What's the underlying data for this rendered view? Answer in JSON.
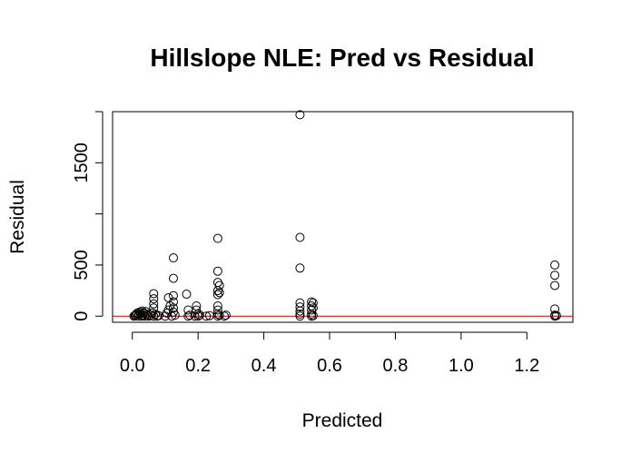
{
  "chart_data": {
    "type": "scatter",
    "title": "Hillslope NLE: Pred vs Residual",
    "xlabel": "Predicted",
    "ylabel": "Residual",
    "xlim": [
      -0.06,
      1.34
    ],
    "ylim": [
      -60,
      2000
    ],
    "xticks": [
      0.0,
      0.2,
      0.4,
      0.6,
      0.8,
      1.0,
      1.2
    ],
    "xtick_labels": [
      "0.0",
      "0.2",
      "0.4",
      "0.6",
      "0.8",
      "1.0",
      "1.2"
    ],
    "yticks": [
      0,
      500,
      1000,
      1500
    ],
    "ytick_labels": [
      "0",
      "500",
      "",
      "1500"
    ],
    "reference_line": {
      "y": 0,
      "color": "#cc0000"
    },
    "marker": "open-circle",
    "grid": false,
    "points": [
      [
        0.005,
        0
      ],
      [
        0.008,
        5
      ],
      [
        0.01,
        10
      ],
      [
        0.012,
        20
      ],
      [
        0.015,
        30
      ],
      [
        0.018,
        0
      ],
      [
        0.02,
        15
      ],
      [
        0.022,
        40
      ],
      [
        0.025,
        25
      ],
      [
        0.028,
        0
      ],
      [
        0.03,
        50
      ],
      [
        0.032,
        10
      ],
      [
        0.035,
        30
      ],
      [
        0.038,
        0
      ],
      [
        0.04,
        45
      ],
      [
        0.042,
        20
      ],
      [
        0.045,
        5
      ],
      [
        0.05,
        0
      ],
      [
        0.055,
        10
      ],
      [
        0.06,
        30
      ],
      [
        0.065,
        0
      ],
      [
        0.07,
        20
      ],
      [
        0.075,
        0
      ],
      [
        0.08,
        5
      ],
      [
        0.065,
        220
      ],
      [
        0.065,
        170
      ],
      [
        0.065,
        120
      ],
      [
        0.065,
        80
      ],
      [
        0.1,
        0
      ],
      [
        0.105,
        30
      ],
      [
        0.11,
        60
      ],
      [
        0.11,
        180
      ],
      [
        0.115,
        100
      ],
      [
        0.12,
        0
      ],
      [
        0.125,
        570
      ],
      [
        0.125,
        370
      ],
      [
        0.125,
        200
      ],
      [
        0.125,
        140
      ],
      [
        0.125,
        80
      ],
      [
        0.125,
        40
      ],
      [
        0.13,
        10
      ],
      [
        0.165,
        215
      ],
      [
        0.17,
        0
      ],
      [
        0.17,
        60
      ],
      [
        0.175,
        10
      ],
      [
        0.19,
        0
      ],
      [
        0.195,
        60
      ],
      [
        0.195,
        100
      ],
      [
        0.2,
        0
      ],
      [
        0.2,
        20
      ],
      [
        0.205,
        10
      ],
      [
        0.225,
        0
      ],
      [
        0.235,
        5
      ],
      [
        0.26,
        760
      ],
      [
        0.26,
        440
      ],
      [
        0.26,
        330
      ],
      [
        0.26,
        250
      ],
      [
        0.26,
        210
      ],
      [
        0.26,
        100
      ],
      [
        0.26,
        60
      ],
      [
        0.26,
        20
      ],
      [
        0.26,
        0
      ],
      [
        0.265,
        230
      ],
      [
        0.265,
        300
      ],
      [
        0.265,
        10
      ],
      [
        0.28,
        0
      ],
      [
        0.285,
        10
      ],
      [
        0.51,
        1970
      ],
      [
        0.51,
        770
      ],
      [
        0.51,
        470
      ],
      [
        0.51,
        130
      ],
      [
        0.51,
        90
      ],
      [
        0.51,
        50
      ],
      [
        0.51,
        20
      ],
      [
        0.51,
        0
      ],
      [
        0.545,
        140
      ],
      [
        0.545,
        100
      ],
      [
        0.545,
        60
      ],
      [
        0.545,
        20
      ],
      [
        0.545,
        0
      ],
      [
        0.55,
        130
      ],
      [
        0.55,
        80
      ],
      [
        0.55,
        5
      ],
      [
        1.285,
        500
      ],
      [
        1.285,
        400
      ],
      [
        1.285,
        300
      ],
      [
        1.285,
        70
      ],
      [
        1.285,
        10
      ],
      [
        1.285,
        0
      ],
      [
        1.29,
        5
      ]
    ]
  }
}
